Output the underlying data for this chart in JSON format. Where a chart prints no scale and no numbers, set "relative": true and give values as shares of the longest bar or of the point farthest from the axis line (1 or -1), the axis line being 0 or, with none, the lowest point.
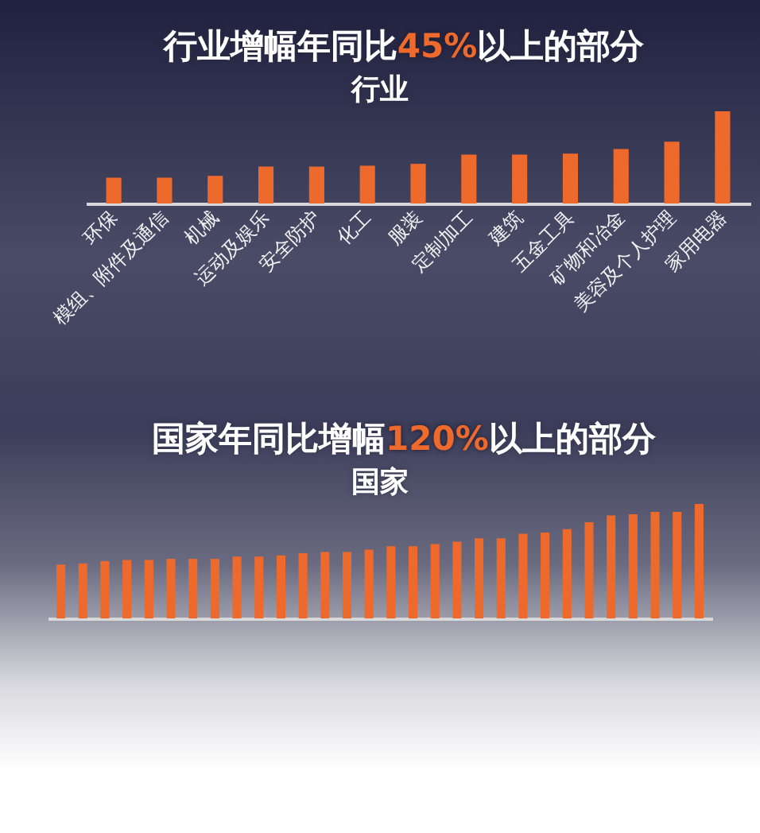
{
  "chart_data": [
    {
      "type": "bar",
      "title": "行业增幅年同比45%以上的部分",
      "subtitle": "行业",
      "relative": true,
      "color": "#ee6a2c",
      "categories": [
        "环保",
        "模组、附件及通信",
        "机械",
        "运动及娱乐",
        "安全防护",
        "化工",
        "服装",
        "定制加工",
        "建筑",
        "五金工具",
        "矿物和冶金",
        "美容及个人护理",
        "家用电器"
      ],
      "values": [
        0.28,
        0.28,
        0.3,
        0.4,
        0.4,
        0.41,
        0.43,
        0.53,
        0.53,
        0.54,
        0.59,
        0.67,
        1
      ]
    },
    {
      "type": "bar",
      "title": "国家年同比增幅120%以上的部分",
      "subtitle": "国家",
      "relative": true,
      "color": "#ee6a2c",
      "categories": [
        null,
        null,
        null,
        null,
        null,
        null,
        null,
        null,
        null,
        null,
        null,
        null,
        null,
        null,
        null,
        null,
        null,
        null,
        null,
        null,
        null,
        null,
        null,
        null,
        null,
        null,
        null,
        null,
        null,
        null
      ],
      "values": [
        0.47,
        0.48,
        0.5,
        0.51,
        0.51,
        0.52,
        0.52,
        0.52,
        0.54,
        0.54,
        0.55,
        0.57,
        0.58,
        0.58,
        0.6,
        0.63,
        0.63,
        0.65,
        0.67,
        0.7,
        0.7,
        0.74,
        0.75,
        0.78,
        0.84,
        0.9,
        0.91,
        0.93,
        0.93,
        1
      ]
    }
  ]
}
